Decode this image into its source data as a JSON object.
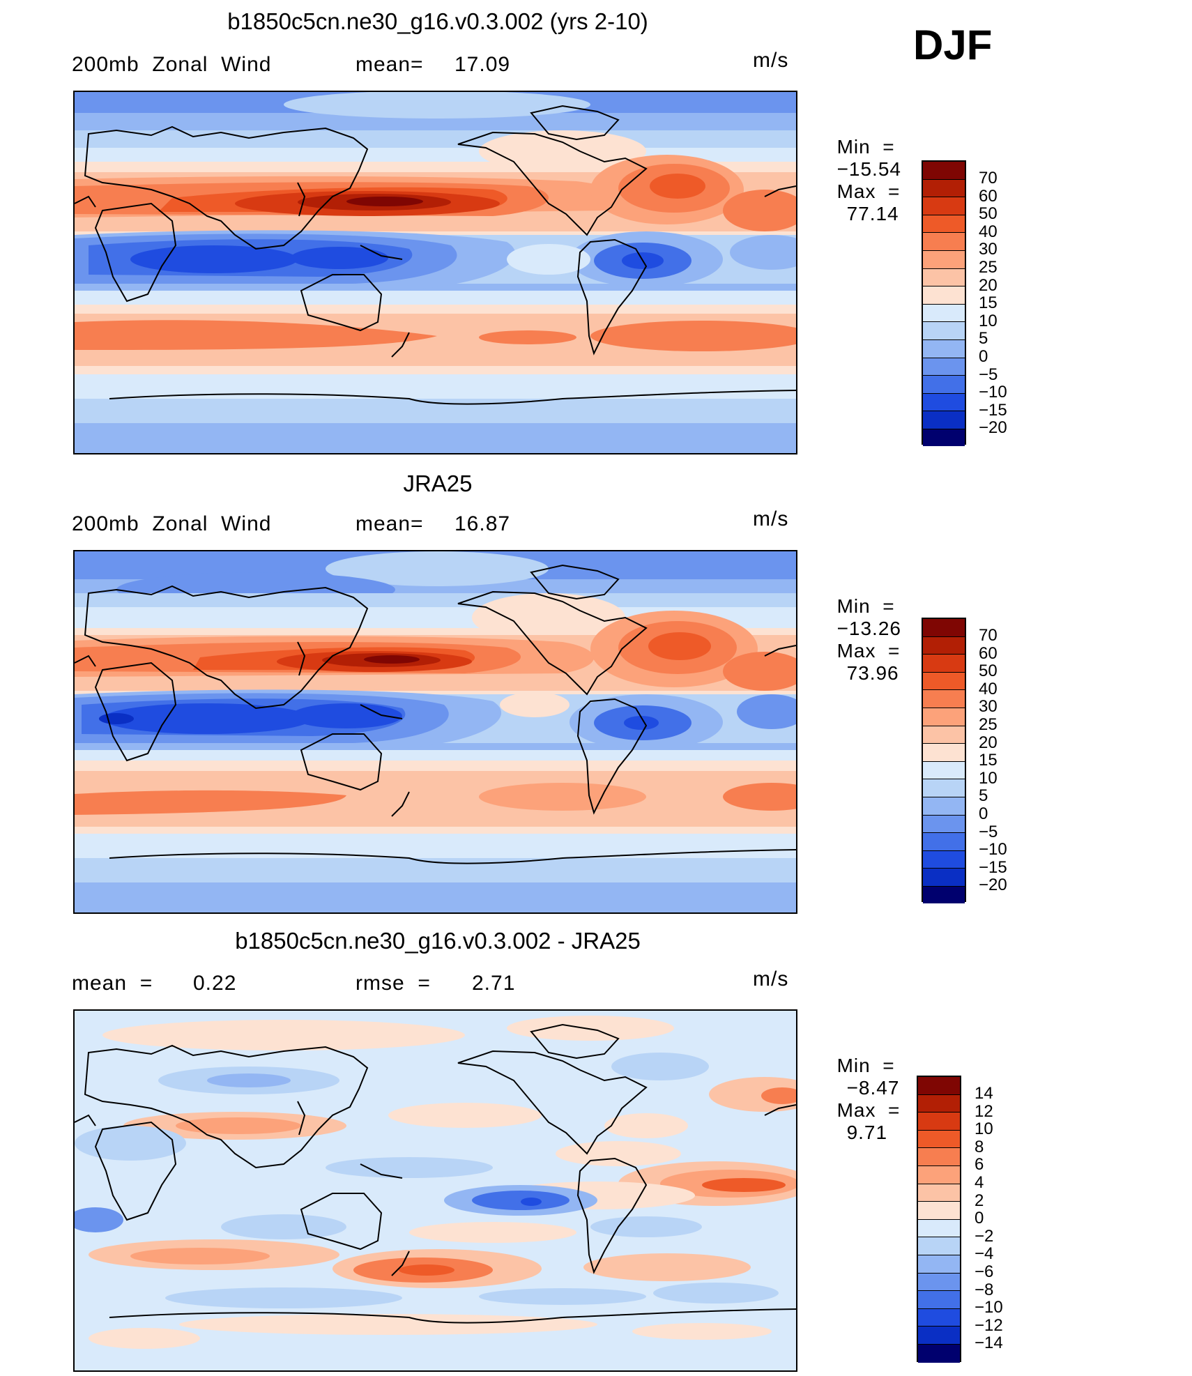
{
  "season": "DJF",
  "colors": {
    "warm": [
      "#fde2d2",
      "#fcc3a6",
      "#fca27a",
      "#f77e50",
      "#ee5a28",
      "#d83a12",
      "#b21f05",
      "#7f0603"
    ],
    "cool": [
      "#d9eafb",
      "#b8d4f6",
      "#93b6f3",
      "#6b94ee",
      "#4270e8",
      "#1f4ce0",
      "#0a2fc4",
      "#041b9a",
      "#00006e"
    ],
    "land_outline": "#000000"
  },
  "panels": [
    {
      "title": "b1850c5cn.ne30_g16.v0.3.002 (yrs 2-10)",
      "left_label": "200mb  Zonal  Wind",
      "mid_label": "mean=",
      "mid_value": "17.09",
      "units": "m/s",
      "min_label": "Min  =",
      "min_value": "−15.54",
      "max_label": "Max  =",
      "max_value": "77.14",
      "colorbar_labels": [
        "70",
        "60",
        "50",
        "40",
        "30",
        "25",
        "20",
        "15",
        "10",
        "5",
        "0",
        "−5",
        "−10",
        "−15",
        "−20"
      ]
    },
    {
      "title": "JRA25",
      "left_label": "200mb  Zonal  Wind",
      "mid_label": "mean=",
      "mid_value": "16.87",
      "units": "m/s",
      "min_label": "Min  =",
      "min_value": "−13.26",
      "max_label": "Max  =",
      "max_value": "73.96",
      "colorbar_labels": [
        "70",
        "60",
        "50",
        "40",
        "30",
        "25",
        "20",
        "15",
        "10",
        "5",
        "0",
        "−5",
        "−10",
        "−15",
        "−20"
      ]
    },
    {
      "title": "b1850c5cn.ne30_g16.v0.3.002 - JRA25",
      "left_label": "mean  =",
      "left_value": "0.22",
      "mid_label": "rmse  =",
      "mid_value": "2.71",
      "units": "m/s",
      "min_label": "Min  =",
      "min_value": "−8.47",
      "max_label": "Max  =",
      "max_value": "9.71",
      "colorbar_labels": [
        "14",
        "12",
        "10",
        "8",
        "6",
        "4",
        "2",
        "0",
        "−2",
        "−4",
        "−6",
        "−8",
        "−10",
        "−12",
        "−14"
      ]
    }
  ]
}
